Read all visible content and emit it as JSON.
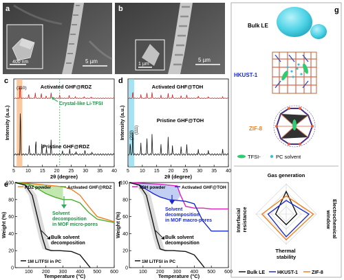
{
  "panels": {
    "a": {
      "label": "a",
      "scale_big": "5 µm",
      "scale_inset": "400 nm"
    },
    "b": {
      "label": "b",
      "scale_big": "5 µm",
      "scale_inset": "1 µm"
    },
    "g": {
      "label": "g",
      "bulk_le": "Bulk LE",
      "hkust": "HKUST-1",
      "zif": "ZIF-8",
      "tfsi": "TFSI-",
      "pc": "PC solvent"
    }
  },
  "chart_data": [
    {
      "type": "line",
      "panel": "c",
      "xlabel": "2θ (degree)",
      "ylabel": "Intensity (a.u.)",
      "xlim": [
        5,
        40
      ],
      "xticks": [
        5,
        10,
        15,
        20,
        25,
        30,
        35,
        40
      ],
      "highlight_band": [
        6,
        8
      ],
      "peak_label": "(110)",
      "dashed_line_x": 21,
      "annotation": "Crystal-like Li-TFSI",
      "series": [
        {
          "name": "Activated GHF@RDZ",
          "color": "#cc2222",
          "peaks": [
            [
              7.2,
              0.9
            ],
            [
              10.2,
              0.25
            ],
            [
              12.5,
              0.35
            ],
            [
              14.6,
              0.3
            ],
            [
              16.3,
              0.15
            ],
            [
              18.0,
              0.35
            ],
            [
              21.0,
              0.2
            ],
            [
              24.3,
              0.2
            ],
            [
              26.5,
              0.1
            ],
            [
              29.5,
              0.1
            ],
            [
              32.0,
              0.08
            ]
          ]
        },
        {
          "name": "Pristine GHF@RDZ",
          "color": "#111111",
          "peaks": [
            [
              7.3,
              1.0
            ],
            [
              10.4,
              0.2
            ],
            [
              12.7,
              0.3
            ],
            [
              14.8,
              0.25
            ],
            [
              16.4,
              0.12
            ],
            [
              18.0,
              0.3
            ],
            [
              22.0,
              0.08
            ],
            [
              24.5,
              0.1
            ],
            [
              26.7,
              0.08
            ],
            [
              29.8,
              0.08
            ],
            [
              32.2,
              0.06
            ]
          ]
        }
      ]
    },
    {
      "type": "line",
      "panel": "d",
      "xlabel": "2θ (degree)",
      "ylabel": "Intensity (a.u.)",
      "xlim": [
        5,
        40
      ],
      "xticks": [
        5,
        10,
        15,
        20,
        25,
        30,
        35,
        40
      ],
      "highlight_band": [
        5.2,
        7.2
      ],
      "peak_labels": [
        "(200)",
        "(111)"
      ],
      "series": [
        {
          "name": "Activated GHF@TOH",
          "color": "#cc2222",
          "peaks": [
            [
              6.7,
              0.45
            ],
            [
              9.5,
              0.25
            ],
            [
              11.6,
              0.35
            ],
            [
              13.4,
              0.4
            ],
            [
              16.5,
              0.2
            ],
            [
              19.0,
              0.3
            ],
            [
              20.5,
              0.25
            ],
            [
              23.5,
              0.15
            ],
            [
              25.5,
              0.2
            ],
            [
              29.5,
              0.15
            ],
            [
              33.0,
              0.1
            ],
            [
              38.0,
              0.08
            ]
          ]
        },
        {
          "name": "Pristine GHF@TOH",
          "color": "#111111",
          "peaks": [
            [
              5.8,
              0.25
            ],
            [
              6.7,
              0.55
            ],
            [
              9.5,
              0.25
            ],
            [
              11.6,
              0.35
            ],
            [
              13.4,
              0.45
            ],
            [
              16.5,
              0.2
            ],
            [
              19.0,
              0.35
            ],
            [
              20.5,
              0.2
            ],
            [
              23.5,
              0.15
            ],
            [
              25.5,
              0.2
            ],
            [
              29.5,
              0.12
            ],
            [
              33.0,
              0.1
            ],
            [
              38.0,
              0.1
            ]
          ]
        }
      ]
    },
    {
      "type": "line",
      "panel": "e",
      "xlabel": "Temperature (°C)",
      "ylabel": "Weight (%)",
      "xlim": [
        20,
        600
      ],
      "ylim": [
        0,
        100
      ],
      "xticks": [
        100,
        200,
        300,
        400,
        500,
        600
      ],
      "yticks": [
        0,
        20,
        40,
        60,
        80,
        100
      ],
      "annotations": [
        "Solvent decomposition in MOF micro-pores",
        "Bulk solvent decomposition"
      ],
      "legend_bottom": "1M LiTFSI in PC",
      "series": [
        {
          "name": "RDZ powder",
          "color": "#f07f1e",
          "x": [
            20,
            100,
            200,
            300,
            350,
            400,
            450,
            500,
            600
          ],
          "y": [
            100,
            99,
            97,
            95,
            92,
            85,
            72,
            60,
            54
          ]
        },
        {
          "name": "Activated GHF@RDZ",
          "color": "#4caf2a",
          "x": [
            20,
            100,
            150,
            200,
            250,
            300,
            350,
            400,
            450,
            500,
            600
          ],
          "y": [
            100,
            98,
            93,
            87,
            83,
            80,
            80,
            76,
            65,
            57,
            53
          ]
        },
        {
          "name": "1M LiTFSI in PC",
          "color": "#111111",
          "x": [
            20,
            80,
            120,
            150,
            180,
            200,
            230,
            280,
            350,
            400,
            440,
            460
          ],
          "y": [
            100,
            97,
            85,
            60,
            35,
            22,
            20,
            20,
            19,
            15,
            5,
            0
          ]
        }
      ]
    },
    {
      "type": "line",
      "panel": "f",
      "xlabel": "Temperature (°C)",
      "ylabel": "Weight (%)",
      "xlim": [
        20,
        600
      ],
      "ylim": [
        0,
        100
      ],
      "xticks": [
        100,
        200,
        300,
        400,
        500,
        600
      ],
      "yticks": [
        0,
        20,
        40,
        60,
        80,
        100
      ],
      "annotations": [
        "Solvent decomposition in MOF macro-pores",
        "Bulk solvent decomposition"
      ],
      "legend_bottom": "1M LiTFSI in PC",
      "series": [
        {
          "name": "TOH powder",
          "color": "#e020c0",
          "x": [
            20,
            100,
            200,
            300,
            320,
            350,
            400,
            450,
            500,
            600
          ],
          "y": [
            100,
            99,
            98,
            96,
            85,
            72,
            70,
            70,
            69,
            69
          ]
        },
        {
          "name": "Activated GHF@TOH",
          "color": "#1a2acc",
          "x": [
            20,
            80,
            120,
            160,
            200,
            250,
            300,
            350,
            400,
            450,
            500,
            600
          ],
          "y": [
            100,
            97,
            92,
            87,
            83,
            80,
            79,
            78,
            75,
            55,
            43,
            43
          ]
        },
        {
          "name": "1M LiTFSI in PC",
          "color": "#111111",
          "x": [
            20,
            80,
            120,
            150,
            180,
            200,
            230,
            280,
            350,
            400,
            440,
            460
          ],
          "y": [
            100,
            97,
            85,
            60,
            35,
            22,
            20,
            20,
            19,
            15,
            5,
            0
          ]
        }
      ]
    },
    {
      "type": "radar",
      "panel": "g",
      "axes": [
        "Gas generation",
        "Electrochemical window",
        "Thermal stability",
        "Interfacial resistance"
      ],
      "series": [
        {
          "name": "Bulk LE",
          "color": "#111111",
          "values": [
            0.75,
            0.35,
            0.35,
            0.35
          ]
        },
        {
          "name": "HKUST-1",
          "color": "#1a2acc",
          "values": [
            0.45,
            0.75,
            0.75,
            0.6
          ]
        },
        {
          "name": "ZIF-8",
          "color": "#f07f1e",
          "values": [
            0.6,
            0.9,
            0.85,
            0.8
          ]
        }
      ]
    }
  ]
}
